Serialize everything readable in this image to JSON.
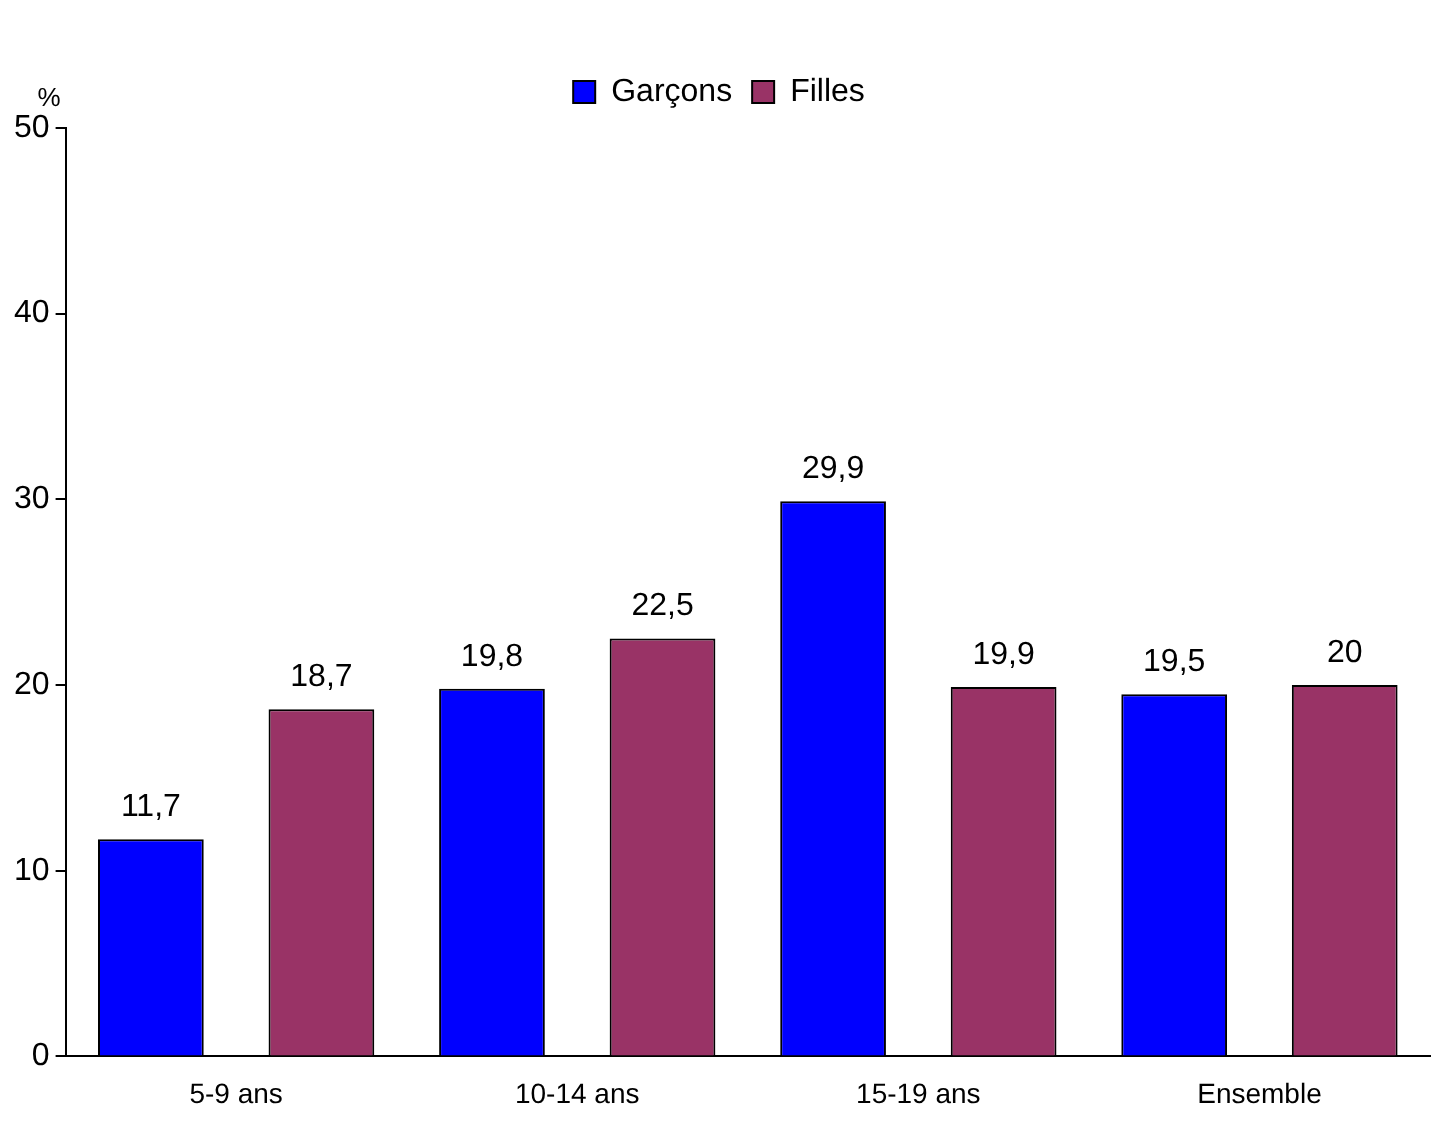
{
  "chart_data": {
    "type": "bar",
    "ylabel": "%",
    "categories": [
      "5-9 ans",
      "10-14 ans",
      "15-19 ans",
      "Ensemble"
    ],
    "series": [
      {
        "name": "Garçons",
        "color": "#0000ff",
        "values": [
          11.7,
          19.8,
          29.9,
          19.5
        ],
        "value_labels": [
          "11,7",
          "19,8",
          "29,9",
          "19,5"
        ]
      },
      {
        "name": "Filles",
        "color": "#993366",
        "values": [
          18.7,
          22.5,
          19.9,
          20
        ],
        "value_labels": [
          "18,7",
          "22,5",
          "19,9",
          "20"
        ]
      }
    ],
    "ylim": [
      0,
      50
    ],
    "yticks": [
      0,
      10,
      20,
      30,
      40,
      50
    ],
    "grid": false,
    "legend": "top"
  }
}
